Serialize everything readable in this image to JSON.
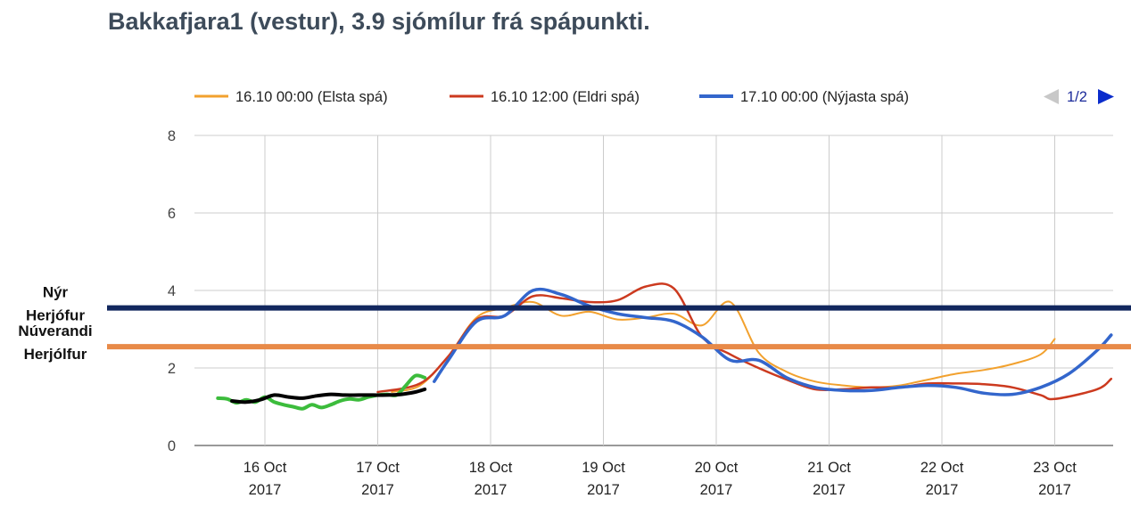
{
  "title": "Bakkafjara1 (vestur), 3.9 sjómílur frá spápunkti.",
  "legend": {
    "entries": [
      {
        "label": "16.10 00:00 (Elsta spá)",
        "color": "#f2a12e"
      },
      {
        "label": "16.10 12:00 (Eldri spá)",
        "color": "#cc3a1f"
      },
      {
        "label": "17.10 00:00 (Nýjasta spá)",
        "color": "#3366cc"
      }
    ],
    "pager": "1/2"
  },
  "reference_lines": [
    {
      "label_line1": "Nýr",
      "label_line2": "Herjófur",
      "value": 3.55,
      "color": "#12275e"
    },
    {
      "label_line1": "Núverandi",
      "label_line2": "Herjólfur",
      "value": 2.55,
      "color": "#e88a48"
    }
  ],
  "chart_data": {
    "type": "line",
    "title": "Bakkafjara1 (vestur), 3.9 sjómílur frá spápunkti.",
    "xlabel": "",
    "ylabel": "",
    "ylim": [
      0,
      8
    ],
    "xlim": [
      "2017-10-15T14:00",
      "2017-10-23T12:00"
    ],
    "y_ticks": [
      "0",
      "2",
      "4",
      "6",
      "8"
    ],
    "x_ticks": [
      {
        "day": "2017-10-16",
        "line1": "16 Oct",
        "line2": "2017"
      },
      {
        "day": "2017-10-17",
        "line1": "17 Oct",
        "line2": "2017"
      },
      {
        "day": "2017-10-18",
        "line1": "18 Oct",
        "line2": "2017"
      },
      {
        "day": "2017-10-19",
        "line1": "19 Oct",
        "line2": "2017"
      },
      {
        "day": "2017-10-20",
        "line1": "20 Oct",
        "line2": "2017"
      },
      {
        "day": "2017-10-21",
        "line1": "21 Oct",
        "line2": "2017"
      },
      {
        "day": "2017-10-22",
        "line1": "22 Oct",
        "line2": "2017"
      },
      {
        "day": "2017-10-23",
        "line1": "23 Oct",
        "line2": "2017"
      }
    ],
    "grid": true,
    "legend_position": "top",
    "series": [
      {
        "name": "16.10 00:00 (Elsta spá)",
        "color": "#f2a12e",
        "width": 2,
        "points": [
          [
            "2017-10-17T03:00",
            1.38
          ],
          [
            "2017-10-17T09:00",
            1.55
          ],
          [
            "2017-10-17T15:00",
            2.3
          ],
          [
            "2017-10-17T21:00",
            3.3
          ],
          [
            "2017-10-18T03:00",
            3.55
          ],
          [
            "2017-10-18T09:00",
            3.7
          ],
          [
            "2017-10-18T15:00",
            3.35
          ],
          [
            "2017-10-18T21:00",
            3.45
          ],
          [
            "2017-10-19T03:00",
            3.25
          ],
          [
            "2017-10-19T09:00",
            3.3
          ],
          [
            "2017-10-19T15:00",
            3.4
          ],
          [
            "2017-10-19T21:00",
            3.1
          ],
          [
            "2017-10-20T03:00",
            3.7
          ],
          [
            "2017-10-20T09:00",
            2.4
          ],
          [
            "2017-10-20T15:00",
            1.9
          ],
          [
            "2017-10-20T21:00",
            1.65
          ],
          [
            "2017-10-21T03:00",
            1.55
          ],
          [
            "2017-10-21T09:00",
            1.5
          ],
          [
            "2017-10-21T15:00",
            1.55
          ],
          [
            "2017-10-21T21:00",
            1.7
          ],
          [
            "2017-10-22T03:00",
            1.85
          ],
          [
            "2017-10-22T09:00",
            1.95
          ],
          [
            "2017-10-22T15:00",
            2.1
          ],
          [
            "2017-10-22T21:00",
            2.35
          ],
          [
            "2017-10-23T00:00",
            2.75
          ]
        ]
      },
      {
        "name": "16.10 12:00 (Eldri spá)",
        "color": "#cc3a1f",
        "width": 2.5,
        "points": [
          [
            "2017-10-17T00:00",
            1.38
          ],
          [
            "2017-10-17T09:00",
            1.6
          ],
          [
            "2017-10-17T15:00",
            2.3
          ],
          [
            "2017-10-17T21:00",
            3.25
          ],
          [
            "2017-10-18T03:00",
            3.35
          ],
          [
            "2017-10-18T09:00",
            3.85
          ],
          [
            "2017-10-18T15:00",
            3.8
          ],
          [
            "2017-10-18T21:00",
            3.7
          ],
          [
            "2017-10-19T03:00",
            3.75
          ],
          [
            "2017-10-19T09:00",
            4.1
          ],
          [
            "2017-10-19T15:00",
            4.05
          ],
          [
            "2017-10-19T21:00",
            2.8
          ],
          [
            "2017-10-20T03:00",
            2.35
          ],
          [
            "2017-10-20T09:00",
            2.0
          ],
          [
            "2017-10-20T15:00",
            1.7
          ],
          [
            "2017-10-20T21:00",
            1.45
          ],
          [
            "2017-10-21T03:00",
            1.45
          ],
          [
            "2017-10-21T09:00",
            1.5
          ],
          [
            "2017-10-21T15:00",
            1.5
          ],
          [
            "2017-10-21T21:00",
            1.6
          ],
          [
            "2017-10-22T03:00",
            1.6
          ],
          [
            "2017-10-22T09:00",
            1.58
          ],
          [
            "2017-10-22T15:00",
            1.5
          ],
          [
            "2017-10-22T21:00",
            1.3
          ],
          [
            "2017-10-23T00:00",
            1.2
          ],
          [
            "2017-10-23T09:00",
            1.45
          ],
          [
            "2017-10-23T12:00",
            1.72
          ]
        ]
      },
      {
        "name": "17.10 00:00 (Nýjasta spá)",
        "color": "#3366cc",
        "width": 3.5,
        "points": [
          [
            "2017-10-17T12:00",
            1.65
          ],
          [
            "2017-10-17T15:00",
            2.2
          ],
          [
            "2017-10-17T21:00",
            3.2
          ],
          [
            "2017-10-18T03:00",
            3.35
          ],
          [
            "2017-10-18T09:00",
            4.0
          ],
          [
            "2017-10-18T15:00",
            3.9
          ],
          [
            "2017-10-18T21:00",
            3.6
          ],
          [
            "2017-10-19T03:00",
            3.4
          ],
          [
            "2017-10-19T09:00",
            3.3
          ],
          [
            "2017-10-19T15:00",
            3.2
          ],
          [
            "2017-10-19T21:00",
            2.8
          ],
          [
            "2017-10-20T03:00",
            2.2
          ],
          [
            "2017-10-20T09:00",
            2.2
          ],
          [
            "2017-10-20T15:00",
            1.75
          ],
          [
            "2017-10-20T21:00",
            1.5
          ],
          [
            "2017-10-21T03:00",
            1.42
          ],
          [
            "2017-10-21T09:00",
            1.42
          ],
          [
            "2017-10-21T15:00",
            1.5
          ],
          [
            "2017-10-21T21:00",
            1.55
          ],
          [
            "2017-10-22T03:00",
            1.5
          ],
          [
            "2017-10-22T09:00",
            1.35
          ],
          [
            "2017-10-22T15:00",
            1.32
          ],
          [
            "2017-10-22T21:00",
            1.5
          ],
          [
            "2017-10-23T03:00",
            1.85
          ],
          [
            "2017-10-23T09:00",
            2.45
          ],
          [
            "2017-10-23T12:00",
            2.85
          ]
        ]
      },
      {
        "name": "",
        "color": "#3cbc3c",
        "width": 4,
        "points": [
          [
            "2017-10-15T14:00",
            1.22
          ],
          [
            "2017-10-15T16:00",
            1.2
          ],
          [
            "2017-10-15T18:00",
            1.1
          ],
          [
            "2017-10-15T20:00",
            1.18
          ],
          [
            "2017-10-15T22:00",
            1.12
          ],
          [
            "2017-10-16T00:00",
            1.25
          ],
          [
            "2017-10-16T02:00",
            1.12
          ],
          [
            "2017-10-16T04:00",
            1.05
          ],
          [
            "2017-10-16T06:00",
            1.0
          ],
          [
            "2017-10-16T08:00",
            0.95
          ],
          [
            "2017-10-16T10:00",
            1.05
          ],
          [
            "2017-10-16T12:00",
            0.98
          ],
          [
            "2017-10-16T14:00",
            1.05
          ],
          [
            "2017-10-16T16:00",
            1.15
          ],
          [
            "2017-10-16T18:00",
            1.2
          ],
          [
            "2017-10-16T20:00",
            1.18
          ],
          [
            "2017-10-16T22:00",
            1.25
          ],
          [
            "2017-10-17T00:00",
            1.3
          ],
          [
            "2017-10-17T02:00",
            1.32
          ],
          [
            "2017-10-17T04:00",
            1.3
          ],
          [
            "2017-10-17T06:00",
            1.55
          ],
          [
            "2017-10-17T08:00",
            1.8
          ],
          [
            "2017-10-17T10:00",
            1.75
          ]
        ]
      },
      {
        "name": "",
        "color": "#000000",
        "width": 4,
        "points": [
          [
            "2017-10-15T17:00",
            1.15
          ],
          [
            "2017-10-15T20:00",
            1.12
          ],
          [
            "2017-10-15T23:00",
            1.18
          ],
          [
            "2017-10-16T02:00",
            1.3
          ],
          [
            "2017-10-16T05:00",
            1.25
          ],
          [
            "2017-10-16T08:00",
            1.22
          ],
          [
            "2017-10-16T11:00",
            1.28
          ],
          [
            "2017-10-16T14:00",
            1.32
          ],
          [
            "2017-10-16T17:00",
            1.3
          ],
          [
            "2017-10-16T20:00",
            1.3
          ],
          [
            "2017-10-16T23:00",
            1.3
          ],
          [
            "2017-10-17T02:00",
            1.3
          ],
          [
            "2017-10-17T05:00",
            1.32
          ],
          [
            "2017-10-17T08:00",
            1.38
          ],
          [
            "2017-10-17T10:00",
            1.45
          ]
        ]
      }
    ]
  }
}
